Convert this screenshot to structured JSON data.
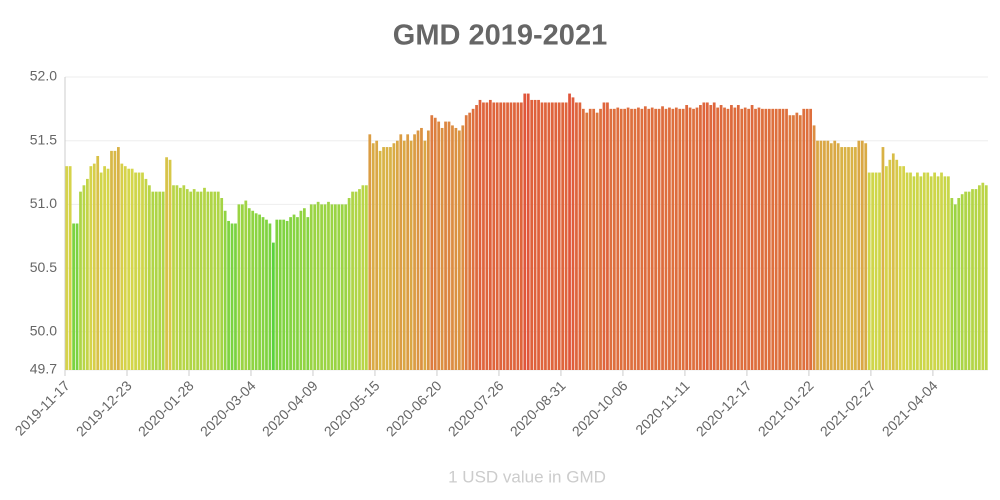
{
  "chart_data": {
    "type": "bar",
    "title": "GMD 2019-2021",
    "x_label": "1 USD value in GMD",
    "categories": [
      "2019-11-17",
      null,
      null,
      null,
      null,
      null,
      null,
      null,
      null,
      null,
      null,
      null,
      null,
      null,
      null,
      null,
      null,
      null,
      "2019-12-23",
      null,
      null,
      null,
      null,
      null,
      null,
      null,
      null,
      null,
      null,
      null,
      null,
      null,
      null,
      null,
      null,
      null,
      "2020-01-28",
      null,
      null,
      null,
      null,
      null,
      null,
      null,
      null,
      null,
      null,
      null,
      null,
      null,
      null,
      null,
      null,
      null,
      "2020-03-04",
      null,
      null,
      null,
      null,
      null,
      null,
      null,
      null,
      null,
      null,
      null,
      null,
      null,
      null,
      null,
      null,
      null,
      "2020-04-09",
      null,
      null,
      null,
      null,
      null,
      null,
      null,
      null,
      null,
      null,
      null,
      null,
      null,
      null,
      null,
      null,
      null,
      "2020-05-15",
      null,
      null,
      null,
      null,
      null,
      null,
      null,
      null,
      null,
      null,
      null,
      null,
      null,
      null,
      null,
      null,
      null,
      "2020-06-20",
      null,
      null,
      null,
      null,
      null,
      null,
      null,
      null,
      null,
      null,
      null,
      null,
      null,
      null,
      null,
      null,
      null,
      "2020-07-26",
      null,
      null,
      null,
      null,
      null,
      null,
      null,
      null,
      null,
      null,
      null,
      null,
      null,
      null,
      null,
      null,
      null,
      "2020-08-31",
      null,
      null,
      null,
      null,
      null,
      null,
      null,
      null,
      null,
      null,
      null,
      null,
      null,
      null,
      null,
      null,
      null,
      "2020-10-06",
      null,
      null,
      null,
      null,
      null,
      null,
      null,
      null,
      null,
      null,
      null,
      null,
      null,
      null,
      null,
      null,
      null,
      "2020-11-11",
      null,
      null,
      null,
      null,
      null,
      null,
      null,
      null,
      null,
      null,
      null,
      null,
      null,
      null,
      null,
      null,
      null,
      "2020-12-17",
      null,
      null,
      null,
      null,
      null,
      null,
      null,
      null,
      null,
      null,
      null,
      null,
      null,
      null,
      null,
      null,
      null,
      "2021-01-22",
      null,
      null,
      null,
      null,
      null,
      null,
      null,
      null,
      null,
      null,
      null,
      null,
      null,
      null,
      null,
      null,
      null,
      "2021-02-27",
      null,
      null,
      null,
      null,
      null,
      null,
      null,
      null,
      null,
      null,
      null,
      null,
      null,
      null,
      null,
      null,
      null,
      "2021-04-04",
      null,
      null,
      null,
      null,
      null,
      null,
      null,
      null,
      null,
      null,
      null,
      null,
      null,
      null,
      null
    ],
    "values": [
      51.3,
      51.3,
      50.85,
      50.85,
      51.1,
      51.15,
      51.2,
      51.3,
      51.32,
      51.38,
      51.25,
      51.3,
      51.28,
      51.42,
      51.42,
      51.45,
      51.32,
      51.3,
      51.28,
      51.28,
      51.25,
      51.25,
      51.25,
      51.2,
      51.15,
      51.1,
      51.1,
      51.1,
      51.1,
      51.37,
      51.35,
      51.15,
      51.15,
      51.13,
      51.15,
      51.12,
      51.1,
      51.12,
      51.1,
      51.1,
      51.13,
      51.1,
      51.1,
      51.1,
      51.1,
      51.05,
      50.95,
      50.87,
      50.85,
      50.85,
      51.0,
      51.0,
      51.03,
      50.97,
      50.95,
      50.93,
      50.92,
      50.9,
      50.88,
      50.85,
      50.7,
      50.88,
      50.88,
      50.88,
      50.87,
      50.9,
      50.92,
      50.9,
      50.95,
      50.97,
      50.9,
      51.0,
      51.0,
      51.02,
      51.0,
      51.0,
      51.02,
      51.0,
      51.0,
      51.0,
      51.0,
      51.0,
      51.05,
      51.1,
      51.1,
      51.12,
      51.15,
      51.15,
      51.55,
      51.48,
      51.5,
      51.42,
      51.45,
      51.45,
      51.45,
      51.48,
      51.5,
      51.55,
      51.5,
      51.55,
      51.5,
      51.55,
      51.58,
      51.6,
      51.5,
      51.58,
      51.7,
      51.68,
      51.65,
      51.6,
      51.65,
      51.65,
      51.62,
      51.6,
      51.58,
      51.62,
      51.7,
      51.72,
      51.75,
      51.78,
      51.82,
      51.8,
      51.8,
      51.82,
      51.8,
      51.8,
      51.8,
      51.8,
      51.8,
      51.8,
      51.8,
      51.8,
      51.8,
      51.87,
      51.87,
      51.82,
      51.82,
      51.82,
      51.8,
      51.8,
      51.8,
      51.8,
      51.8,
      51.8,
      51.8,
      51.8,
      51.87,
      51.84,
      51.8,
      51.8,
      51.75,
      51.72,
      51.75,
      51.75,
      51.72,
      51.75,
      51.8,
      51.8,
      51.75,
      51.75,
      51.76,
      51.75,
      51.75,
      51.76,
      51.75,
      51.75,
      51.76,
      51.75,
      51.77,
      51.75,
      51.76,
      51.75,
      51.75,
      51.77,
      51.75,
      51.76,
      51.75,
      51.76,
      51.75,
      51.75,
      51.78,
      51.76,
      51.75,
      51.76,
      51.78,
      51.8,
      51.8,
      51.78,
      51.8,
      51.76,
      51.78,
      51.76,
      51.75,
      51.78,
      51.76,
      51.78,
      51.75,
      51.76,
      51.75,
      51.78,
      51.75,
      51.76,
      51.75,
      51.75,
      51.75,
      51.75,
      51.75,
      51.75,
      51.75,
      51.75,
      51.7,
      51.7,
      51.72,
      51.7,
      51.75,
      51.75,
      51.75,
      51.62,
      51.5,
      51.5,
      51.5,
      51.5,
      51.48,
      51.5,
      51.48,
      51.45,
      51.45,
      51.45,
      51.45,
      51.45,
      51.5,
      51.5,
      51.48,
      51.25,
      51.25,
      51.25,
      51.25,
      51.45,
      51.3,
      51.35,
      51.4,
      51.35,
      51.3,
      51.3,
      51.25,
      51.25,
      51.22,
      51.25,
      51.22,
      51.25,
      51.25,
      51.22,
      51.25,
      51.22,
      51.25,
      51.22,
      51.22,
      51.05,
      51.0,
      51.05,
      51.08,
      51.1,
      51.1,
      51.12,
      51.12,
      51.15,
      51.17,
      51.15
    ],
    "color_scale": [
      "#5ad23c",
      "#d6d64a",
      "#e0553a"
    ],
    "ylim": [
      49.7,
      52.0
    ],
    "yticks": [
      49.7,
      {
        "value": 50,
        "label": "50.0"
      },
      50.5,
      {
        "value": 51,
        "label": "51.0"
      },
      51.5,
      {
        "value": 52,
        "label": "52.0"
      }
    ],
    "grid": true
  }
}
